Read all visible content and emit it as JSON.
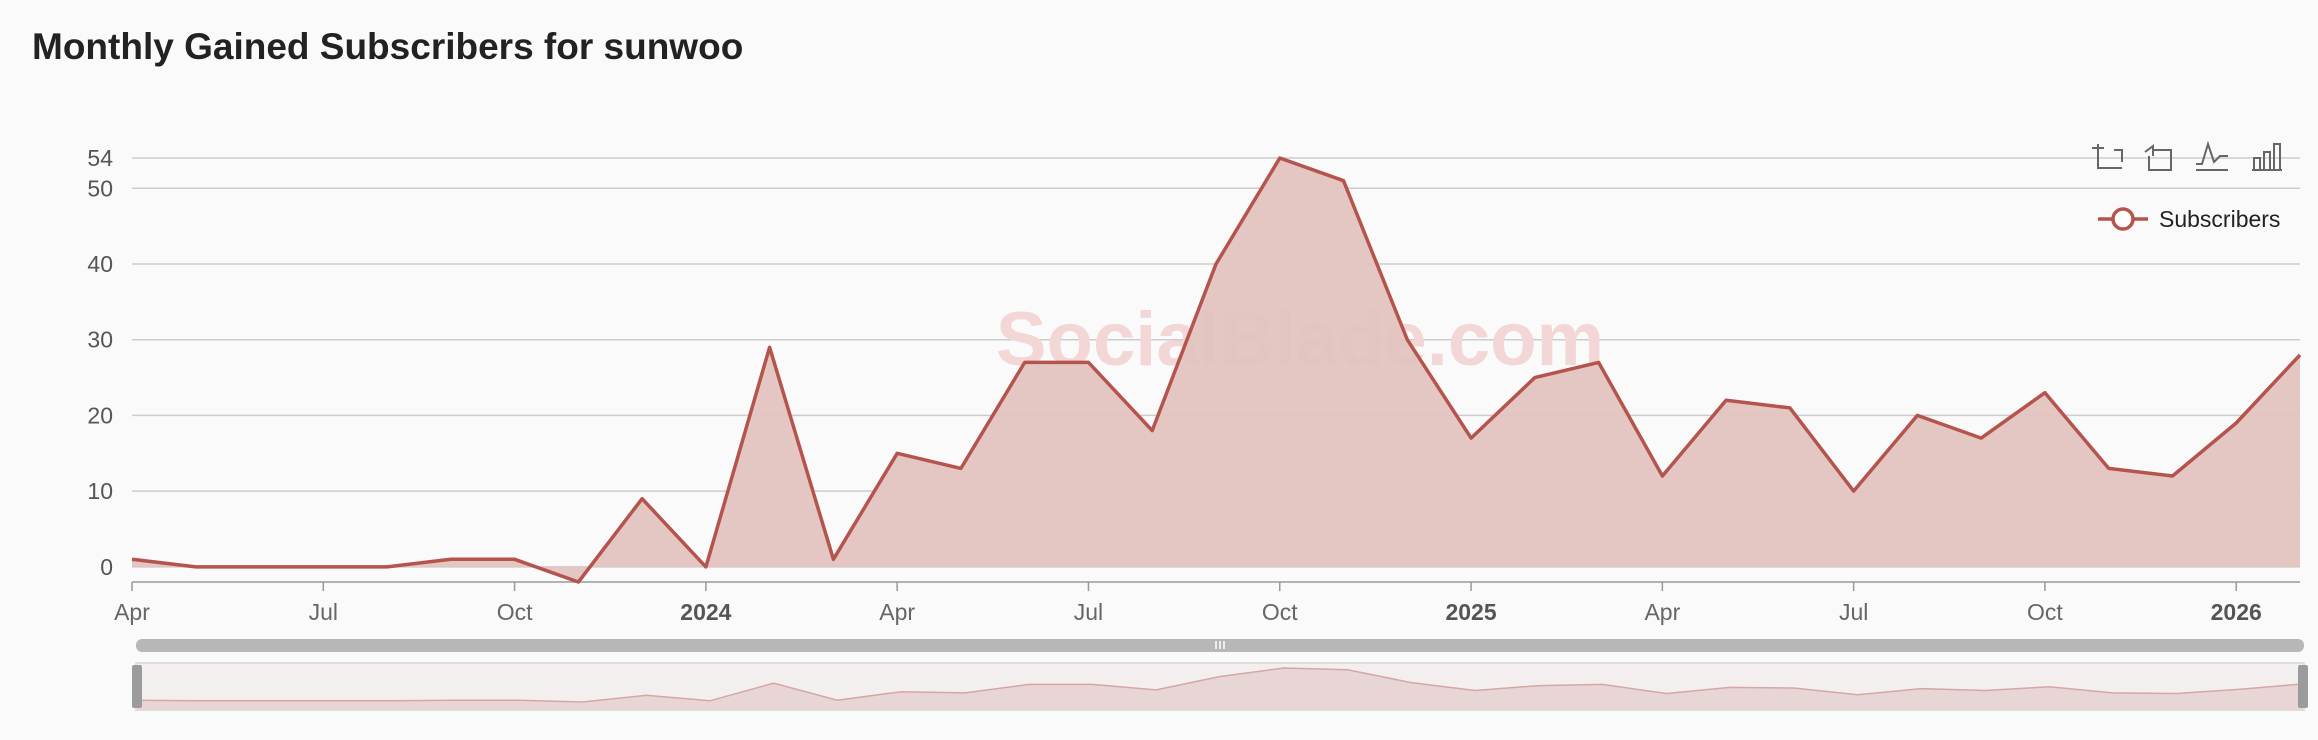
{
  "title": "Monthly Gained Subscribers for sunwoo",
  "watermark": "SocialBlade.com",
  "colors": {
    "line": "#b5534d",
    "area": "#e3c3c0",
    "grid": "#cccccc",
    "slider_fill": "#e8d6d6",
    "slider_bar": "#b7b7b7"
  },
  "toolbox": [
    "zoom-icon",
    "zoom-reset-icon",
    "line-chart-icon",
    "bar-chart-icon"
  ],
  "chart_data": {
    "type": "area",
    "title": "Monthly Gained Subscribers for sunwoo",
    "xlabel": "",
    "ylabel": "",
    "x": [
      "2023-04",
      "2023-05",
      "2023-06",
      "2023-07",
      "2023-08",
      "2023-09",
      "2023-10",
      "2023-11",
      "2023-12",
      "2024-01",
      "2024-02",
      "2024-03",
      "2024-04",
      "2024-05",
      "2024-06",
      "2024-07",
      "2024-08",
      "2024-09",
      "2024-10",
      "2024-11",
      "2024-12",
      "2025-01",
      "2025-02",
      "2025-03",
      "2025-04",
      "2025-05",
      "2025-06",
      "2025-07",
      "2025-08",
      "2025-09",
      "2025-10",
      "2025-11",
      "2025-12",
      "2026-01",
      "2026-02"
    ],
    "series": [
      {
        "name": "Subscribers",
        "values": [
          1,
          0,
          0,
          0,
          0,
          1,
          1,
          -2,
          9,
          0,
          29,
          1,
          15,
          13,
          27,
          27,
          18,
          40,
          54,
          51,
          30,
          17,
          25,
          27,
          12,
          22,
          21,
          10,
          20,
          17,
          23,
          13,
          12,
          19,
          28
        ]
      }
    ],
    "ylim": [
      -2,
      54
    ],
    "yticks": [
      0,
      10,
      20,
      30,
      40,
      50,
      54
    ],
    "xticks": [
      {
        "label": "Apr",
        "x": "2023-04",
        "bold": false
      },
      {
        "label": "Jul",
        "x": "2023-07",
        "bold": false
      },
      {
        "label": "Oct",
        "x": "2023-10",
        "bold": false
      },
      {
        "label": "2024",
        "x": "2024-01",
        "bold": true
      },
      {
        "label": "Apr",
        "x": "2024-04",
        "bold": false
      },
      {
        "label": "Jul",
        "x": "2024-07",
        "bold": false
      },
      {
        "label": "Oct",
        "x": "2024-10",
        "bold": false
      },
      {
        "label": "2025",
        "x": "2025-01",
        "bold": true
      },
      {
        "label": "Apr",
        "x": "2025-04",
        "bold": false
      },
      {
        "label": "Jul",
        "x": "2025-07",
        "bold": false
      },
      {
        "label": "Oct",
        "x": "2025-10",
        "bold": false
      },
      {
        "label": "2026",
        "x": "2026-01",
        "bold": true
      }
    ],
    "grid": true,
    "legend": "top-right",
    "zoom_slider": true
  }
}
